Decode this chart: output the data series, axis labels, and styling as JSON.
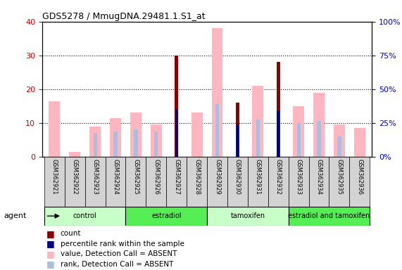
{
  "title": "GDS5278 / MmugDNA.29481.1.S1_at",
  "samples": [
    "GSM362921",
    "GSM362922",
    "GSM362923",
    "GSM362924",
    "GSM362925",
    "GSM362926",
    "GSM362927",
    "GSM362928",
    "GSM362929",
    "GSM362930",
    "GSM362931",
    "GSM362932",
    "GSM362933",
    "GSM362934",
    "GSM362935",
    "GSM362936"
  ],
  "count": [
    0,
    0,
    0,
    0,
    0,
    0,
    30,
    0,
    0,
    16,
    0,
    28,
    0,
    0,
    0,
    0
  ],
  "percentile_rank": [
    0,
    0,
    0,
    0,
    0,
    0,
    14,
    0,
    0,
    9.5,
    0,
    13.5,
    0,
    0,
    0,
    0
  ],
  "value_absent": [
    16.5,
    1.5,
    9,
    11.5,
    13,
    9.5,
    0,
    13,
    38,
    0,
    21,
    0,
    15,
    19,
    9.5,
    8.5
  ],
  "rank_absent": [
    0,
    0,
    7,
    7.5,
    8,
    7.5,
    0,
    0,
    15.5,
    0,
    11,
    0,
    10,
    10.5,
    6,
    0
  ],
  "groups": [
    {
      "label": "control",
      "start": 0,
      "end": 3
    },
    {
      "label": "estradiol",
      "start": 4,
      "end": 7
    },
    {
      "label": "tamoxifen",
      "start": 8,
      "end": 11
    },
    {
      "label": "estradiol and tamoxifen",
      "start": 12,
      "end": 15
    }
  ],
  "ylim_left": [
    0,
    40
  ],
  "ylim_right": [
    0,
    100
  ],
  "wide_bar_width": 0.55,
  "narrow_bar_width": 0.18,
  "count_color": "#8B0000",
  "rank_color": "#00008B",
  "value_absent_color": "#FFB6C1",
  "rank_absent_color": "#AABFDD",
  "bg_color": "#ffffff",
  "grid_color": "#000000",
  "ytick_color_left": "#cc0000",
  "ytick_color_right": "#0000cc",
  "group_color_light": "#ccffcc",
  "group_color_bright": "#66ee66",
  "sample_box_color": "#d3d3d3"
}
